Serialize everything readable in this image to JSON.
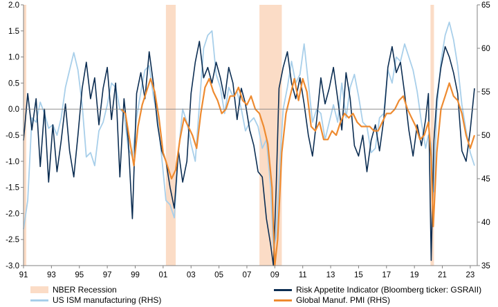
{
  "chart_data": {
    "type": "line",
    "title": "",
    "xlabel": "",
    "ylabel": "",
    "x_ticks": [
      "91",
      "93",
      "95",
      "97",
      "99",
      "01",
      "03",
      "05",
      "07",
      "09",
      "11",
      "13",
      "15",
      "17",
      "19",
      "21",
      "23"
    ],
    "xlim": [
      1991.0,
      2023.5
    ],
    "y_left": {
      "lim": [
        -3.0,
        2.0
      ],
      "ticks": [
        "2.0",
        "1.5",
        "1.0",
        "0.5",
        "0.0",
        "-0.5",
        "-1.0",
        "-1.5",
        "-2.0",
        "-2.5",
        "-3.0"
      ]
    },
    "y_right": {
      "lim": [
        35,
        65
      ],
      "ticks": [
        "65",
        "60",
        "55",
        "50",
        "45",
        "40",
        "35"
      ]
    },
    "grid": false,
    "zero_line": true,
    "legend_position": "bottom",
    "recessions": [
      [
        1991.0,
        1991.2
      ],
      [
        2001.2,
        2001.9
      ],
      [
        2007.9,
        2009.5
      ],
      [
        2020.15,
        2020.4
      ]
    ],
    "series": [
      {
        "name": "NBER Recession",
        "kind": "band",
        "color": "#fbdcc6"
      },
      {
        "name": "Risk Appetite Indicator (Bloomberg ticker: GSRAII)",
        "axis": "left",
        "color": "#0b2d52",
        "x": [
          1991.0,
          1991.3,
          1991.6,
          1991.9,
          1992.2,
          1992.5,
          1992.8,
          1993.1,
          1993.4,
          1993.7,
          1994.0,
          1994.3,
          1994.6,
          1994.9,
          1995.2,
          1995.5,
          1995.8,
          1996.1,
          1996.4,
          1996.7,
          1997.0,
          1997.3,
          1997.6,
          1997.9,
          1998.2,
          1998.5,
          1998.8,
          1999.1,
          1999.4,
          1999.7,
          2000.0,
          2000.3,
          2000.6,
          2000.9,
          2001.2,
          2001.5,
          2001.8,
          2002.1,
          2002.4,
          2002.7,
          2003.0,
          2003.3,
          2003.6,
          2003.9,
          2004.2,
          2004.5,
          2004.8,
          2005.1,
          2005.4,
          2005.7,
          2006.0,
          2006.3,
          2006.6,
          2006.9,
          2007.2,
          2007.5,
          2007.8,
          2008.1,
          2008.4,
          2008.7,
          2008.9,
          2009.1,
          2009.3,
          2009.6,
          2009.9,
          2010.2,
          2010.5,
          2010.8,
          2011.1,
          2011.4,
          2011.7,
          2012.0,
          2012.3,
          2012.6,
          2012.9,
          2013.2,
          2013.5,
          2013.8,
          2014.1,
          2014.4,
          2014.7,
          2015.0,
          2015.3,
          2015.6,
          2015.9,
          2016.2,
          2016.5,
          2016.8,
          2017.1,
          2017.4,
          2017.7,
          2018.0,
          2018.3,
          2018.6,
          2018.9,
          2019.2,
          2019.5,
          2019.8,
          2020.0,
          2020.2,
          2020.4,
          2020.6,
          2020.9,
          2021.2,
          2021.5,
          2021.8,
          2022.1,
          2022.4,
          2022.7,
          2023.0,
          2023.3
        ],
        "y": [
          -0.6,
          0.3,
          -0.4,
          0.2,
          -1.1,
          0.0,
          -1.4,
          -0.3,
          -1.2,
          -0.6,
          0.1,
          -0.8,
          -1.3,
          -0.5,
          0.4,
          0.9,
          0.2,
          0.6,
          -0.3,
          0.4,
          0.8,
          -0.2,
          0.5,
          -1.3,
          0.2,
          -0.6,
          -2.1,
          0.3,
          0.7,
          0.2,
          1.1,
          0.5,
          -0.3,
          -0.8,
          -1.0,
          -1.5,
          -1.9,
          -0.8,
          -1.4,
          -1.0,
          0.3,
          0.9,
          1.3,
          0.6,
          0.8,
          0.5,
          0.9,
          0.6,
          0.2,
          0.8,
          0.5,
          -0.2,
          0.4,
          0.1,
          -0.4,
          -0.7,
          -1.2,
          -1.3,
          -2.1,
          -2.6,
          -3.0,
          -1.5,
          0.4,
          0.8,
          1.1,
          0.5,
          0.2,
          0.6,
          0.1,
          -0.5,
          -0.9,
          -0.2,
          0.6,
          0.1,
          0.4,
          0.8,
          0.2,
          -0.4,
          0.7,
          0.2,
          -0.7,
          -0.9,
          -0.5,
          -1.2,
          -0.6,
          -0.3,
          -0.8,
          -0.2,
          0.8,
          1.2,
          0.7,
          0.9,
          0.3,
          -0.4,
          -0.9,
          -0.3,
          -0.7,
          -0.2,
          0.3,
          -2.9,
          -0.6,
          0.2,
          0.8,
          1.2,
          1.0,
          0.7,
          0.3,
          -0.8,
          -1.0,
          -0.4,
          0.4
        ]
      },
      {
        "name": "US ISM manufacturing (RHS)",
        "axis": "right",
        "color": "#a8cfea",
        "x": [
          1991.0,
          1991.3,
          1991.6,
          1991.9,
          1992.2,
          1992.5,
          1992.8,
          1993.1,
          1993.4,
          1993.7,
          1994.0,
          1994.3,
          1994.6,
          1994.9,
          1995.2,
          1995.5,
          1995.8,
          1996.1,
          1996.4,
          1996.7,
          1997.0,
          1997.3,
          1997.6,
          1997.9,
          1998.2,
          1998.5,
          1998.8,
          1999.1,
          1999.4,
          1999.7,
          2000.0,
          2000.3,
          2000.6,
          2000.9,
          2001.2,
          2001.5,
          2001.8,
          2002.1,
          2002.4,
          2002.7,
          2003.0,
          2003.3,
          2003.6,
          2003.9,
          2004.2,
          2004.5,
          2004.8,
          2005.1,
          2005.4,
          2005.7,
          2006.0,
          2006.3,
          2006.6,
          2006.9,
          2007.2,
          2007.5,
          2007.8,
          2008.1,
          2008.4,
          2008.7,
          2008.9,
          2009.1,
          2009.3,
          2009.6,
          2009.9,
          2010.2,
          2010.5,
          2010.8,
          2011.1,
          2011.4,
          2011.7,
          2012.0,
          2012.3,
          2012.6,
          2012.9,
          2013.2,
          2013.5,
          2013.8,
          2014.1,
          2014.4,
          2014.7,
          2015.0,
          2015.3,
          2015.6,
          2015.9,
          2016.2,
          2016.5,
          2016.8,
          2017.1,
          2017.4,
          2017.7,
          2018.0,
          2018.3,
          2018.6,
          2018.9,
          2019.2,
          2019.5,
          2019.8,
          2020.0,
          2020.2,
          2020.4,
          2020.6,
          2020.9,
          2021.2,
          2021.5,
          2021.8,
          2022.1,
          2022.4,
          2022.7,
          2023.0,
          2023.3
        ],
        "y": [
          39.2,
          42.5,
          52.0,
          51.5,
          53.8,
          52.5,
          50.8,
          51.2,
          50.0,
          52.0,
          55.5,
          57.5,
          59.5,
          57.5,
          53.5,
          47.5,
          48.0,
          46.5,
          50.5,
          51.5,
          53.5,
          56.0,
          55.5,
          53.0,
          52.5,
          48.5,
          47.5,
          52.0,
          55.0,
          57.5,
          58.0,
          54.5,
          52.0,
          47.5,
          42.5,
          42.0,
          40.5,
          48.0,
          53.0,
          51.5,
          49.0,
          47.0,
          53.5,
          60.0,
          61.5,
          62.0,
          57.0,
          55.5,
          52.5,
          55.5,
          54.5,
          55.0,
          53.0,
          50.5,
          51.5,
          52.0,
          51.0,
          48.5,
          49.5,
          44.0,
          37.0,
          38.5,
          45.0,
          53.0,
          55.5,
          58.5,
          56.0,
          57.0,
          60.5,
          56.0,
          51.5,
          53.0,
          52.5,
          49.5,
          51.5,
          53.5,
          51.5,
          56.0,
          52.0,
          55.5,
          57.0,
          54.5,
          51.5,
          51.0,
          48.0,
          48.5,
          52.0,
          52.5,
          57.5,
          56.0,
          59.0,
          58.5,
          60.5,
          59.0,
          57.5,
          55.0,
          51.5,
          48.5,
          50.0,
          49.0,
          43.5,
          53.0,
          58.5,
          61.5,
          63.0,
          61.0,
          58.0,
          53.5,
          50.5,
          48.0,
          46.5
        ]
      },
      {
        "name": "Global Manuf. PMI (RHS)",
        "axis": "right",
        "color": "#ee8a2f",
        "x": [
          1998.0,
          1998.3,
          1998.6,
          1998.9,
          1999.2,
          1999.5,
          1999.8,
          2000.1,
          2000.4,
          2000.7,
          2001.0,
          2001.3,
          2001.6,
          2001.9,
          2002.2,
          2002.5,
          2002.8,
          2003.1,
          2003.4,
          2003.7,
          2004.0,
          2004.3,
          2004.6,
          2004.9,
          2005.2,
          2005.5,
          2005.8,
          2006.1,
          2006.4,
          2006.7,
          2007.0,
          2007.3,
          2007.6,
          2007.9,
          2008.2,
          2008.5,
          2008.8,
          2009.0,
          2009.2,
          2009.5,
          2009.8,
          2010.1,
          2010.4,
          2010.7,
          2011.0,
          2011.3,
          2011.6,
          2011.9,
          2012.2,
          2012.5,
          2012.8,
          2013.1,
          2013.4,
          2013.7,
          2014.0,
          2014.3,
          2014.6,
          2014.9,
          2015.2,
          2015.5,
          2015.8,
          2016.1,
          2016.4,
          2016.7,
          2017.0,
          2017.3,
          2017.6,
          2017.9,
          2018.2,
          2018.5,
          2018.8,
          2019.1,
          2019.4,
          2019.7,
          2020.0,
          2020.2,
          2020.35,
          2020.6,
          2020.9,
          2021.2,
          2021.5,
          2021.8,
          2022.1,
          2022.4,
          2022.7,
          2023.0,
          2023.3
        ],
        "y": [
          53.0,
          52.5,
          49.5,
          46.5,
          51.0,
          53.5,
          55.0,
          56.5,
          55.0,
          52.0,
          48.0,
          46.5,
          45.0,
          46.0,
          49.5,
          52.0,
          51.0,
          50.0,
          48.5,
          52.5,
          55.5,
          56.5,
          55.0,
          54.0,
          52.5,
          53.0,
          54.5,
          54.5,
          55.5,
          54.0,
          53.5,
          54.5,
          53.0,
          52.5,
          51.0,
          49.0,
          44.0,
          35.0,
          38.0,
          48.0,
          52.5,
          54.5,
          56.5,
          54.0,
          56.5,
          55.0,
          51.0,
          50.5,
          51.5,
          49.5,
          49.5,
          50.5,
          50.0,
          51.5,
          52.5,
          52.0,
          52.5,
          51.5,
          51.0,
          51.0,
          51.0,
          50.5,
          50.5,
          51.5,
          52.5,
          52.5,
          53.0,
          54.0,
          54.5,
          53.0,
          52.0,
          51.0,
          49.5,
          50.0,
          51.5,
          47.5,
          39.5,
          48.0,
          53.0,
          54.5,
          56.0,
          54.5,
          54.0,
          52.5,
          50.0,
          48.5,
          50.0
        ]
      }
    ]
  }
}
